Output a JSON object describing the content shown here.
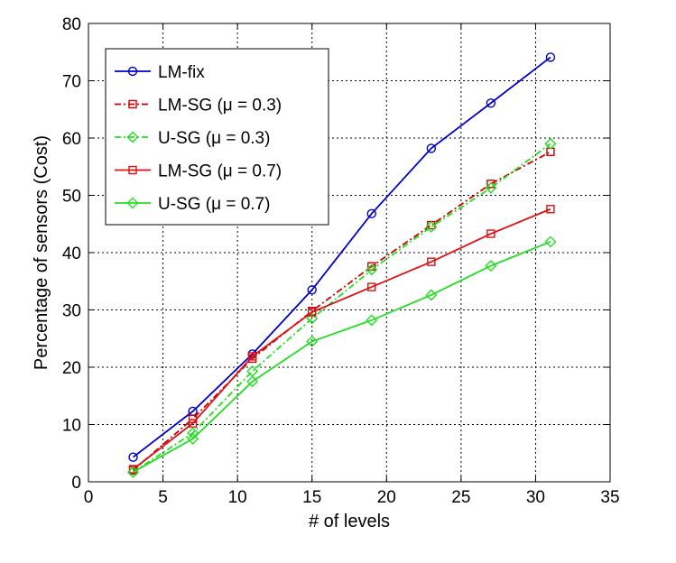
{
  "chart_data": {
    "type": "line",
    "title": "",
    "xlabel": "# of levels",
    "ylabel": "Percentage of sensors (Cost)",
    "xlim": [
      0,
      35
    ],
    "ylim": [
      0,
      80
    ],
    "xticks": [
      0,
      5,
      10,
      15,
      20,
      25,
      30,
      35
    ],
    "yticks": [
      0,
      10,
      20,
      30,
      40,
      50,
      60,
      70,
      80
    ],
    "grid": true,
    "legend_position": "top-left",
    "x": [
      3,
      7,
      11,
      15,
      19,
      23,
      27,
      31
    ],
    "series": [
      {
        "name": "LM-fix",
        "legend_label": "LM-fix",
        "color": "#0000cc",
        "line_style": "solid",
        "marker": "circle",
        "values": [
          4.3,
          12.3,
          22.3,
          33.5,
          46.8,
          58.2,
          66.1,
          74.1
        ]
      },
      {
        "name": "LM-SG (μ = 0.3)",
        "legend_label": "LM-SG (μ = 0.3)",
        "color": "#cc0000",
        "line_style": "dashdot",
        "marker": "square",
        "values": [
          2.0,
          11.0,
          21.5,
          29.8,
          37.6,
          44.8,
          52.0,
          57.6
        ]
      },
      {
        "name": "U-SG (μ = 0.3)",
        "legend_label": "U-SG (μ = 0.3)",
        "color": "#22dd22",
        "line_style": "dashdot",
        "marker": "diamond",
        "values": [
          1.7,
          8.5,
          19.3,
          28.5,
          37.0,
          44.5,
          51.3,
          59.0
        ]
      },
      {
        "name": "LM-SG (μ = 0.7)",
        "legend_label": "LM-SG (μ = 0.7)",
        "color": "#dd1111",
        "line_style": "solid",
        "marker": "square",
        "values": [
          2.2,
          10.2,
          21.9,
          29.6,
          34.0,
          38.4,
          43.3,
          47.6
        ]
      },
      {
        "name": "U-SG (μ = 0.7)",
        "legend_label": "U-SG (μ = 0.7)",
        "color": "#22dd22",
        "line_style": "solid",
        "marker": "diamond",
        "values": [
          1.7,
          7.5,
          17.5,
          24.5,
          28.2,
          32.6,
          37.7,
          41.9
        ]
      }
    ]
  }
}
